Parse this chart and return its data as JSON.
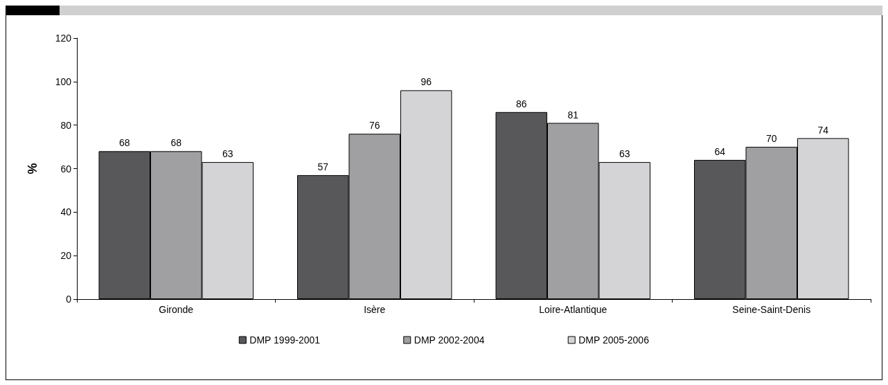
{
  "chart_data": {
    "type": "bar",
    "ylabel": "%",
    "categories": [
      "Gironde",
      "Isère",
      "Loire-Atlantique",
      "Seine-Saint-Denis"
    ],
    "series": [
      {
        "name": "DMP 1999-2001",
        "color": "#58585a",
        "values": [
          68,
          57,
          86,
          64
        ]
      },
      {
        "name": "DMP 2002-2004",
        "color": "#a0a0a2",
        "values": [
          68,
          76,
          81,
          70
        ]
      },
      {
        "name": "DMP 2005-2006",
        "color": "#d4d4d6",
        "values": [
          63,
          96,
          63,
          74
        ]
      }
    ],
    "ylim": [
      0,
      120
    ],
    "yticks": [
      0,
      20,
      40,
      60,
      80,
      100,
      120
    ],
    "grid": false,
    "legend": "bottom",
    "data_labels": true,
    "marker": "square"
  }
}
